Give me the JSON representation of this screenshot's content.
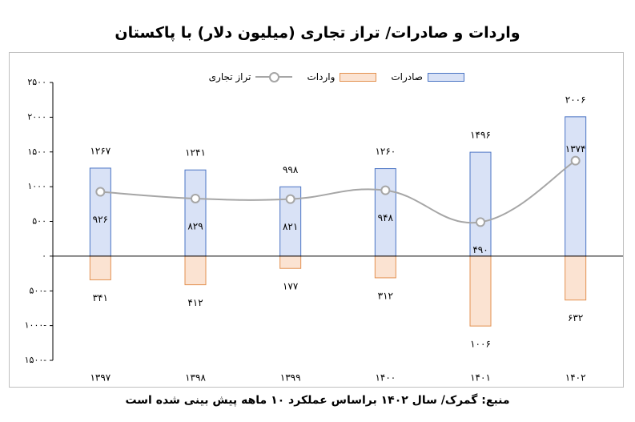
{
  "title": "واردات و صادرات/ تراز تجاری (میلیون دلار) با پاکستان",
  "source_note": "منبع: گمرک/ سال ۱۴۰۲ براساس عملکرد ۱۰ ماهه پیش بینی شده است",
  "legend": {
    "exports": "صادرات",
    "imports": "واردات",
    "balance": "تراز تجاری"
  },
  "chart_data": {
    "type": "bar",
    "categories": [
      "۱۳۹۷",
      "۱۳۹۸",
      "۱۳۹۹",
      "۱۴۰۰",
      "۱۴۰۱",
      "۱۴۰۲"
    ],
    "series": [
      {
        "name": "صادرات",
        "type": "bar",
        "values": [
          1267,
          1241,
          998,
          1260,
          1496,
          2006
        ],
        "labels": [
          "۱۲۶۷",
          "۱۲۴۱",
          "۹۹۸",
          "۱۲۶۰",
          "۱۴۹۶",
          "۲۰۰۶"
        ],
        "color": "#d9e2f6",
        "stroke": "#4a74c4"
      },
      {
        "name": "واردات",
        "type": "bar",
        "values": [
          -341,
          -412,
          -177,
          -312,
          -1006,
          -632
        ],
        "labels": [
          "۳۴۱",
          "۴۱۲",
          "۱۷۷",
          "۳۱۲",
          "۱۰۰۶",
          "۶۳۲"
        ],
        "color": "#fbe3d2",
        "stroke": "#e39150"
      },
      {
        "name": "تراز تجاری",
        "type": "line",
        "values": [
          926,
          829,
          821,
          948,
          490,
          1374
        ],
        "labels": [
          "۹۲۶",
          "۸۲۹",
          "۸۲۱",
          "۹۴۸",
          "۴۹۰",
          "۱۳۷۴"
        ],
        "color": "#a6a6a6"
      }
    ],
    "ylim": [
      -1500,
      2500
    ],
    "yticks": [
      2500,
      2000,
      1500,
      1000,
      500,
      0,
      -500,
      -1000,
      -1500
    ],
    "ytick_labels": [
      "۲۵۰۰",
      "۲۰۰۰",
      "۱۵۰۰",
      "۱۰۰۰",
      "۵۰۰",
      "۰",
      "۵۰۰-",
      "۱۰۰۰-",
      "۱۵۰۰-"
    ],
    "legend_position": "top"
  }
}
